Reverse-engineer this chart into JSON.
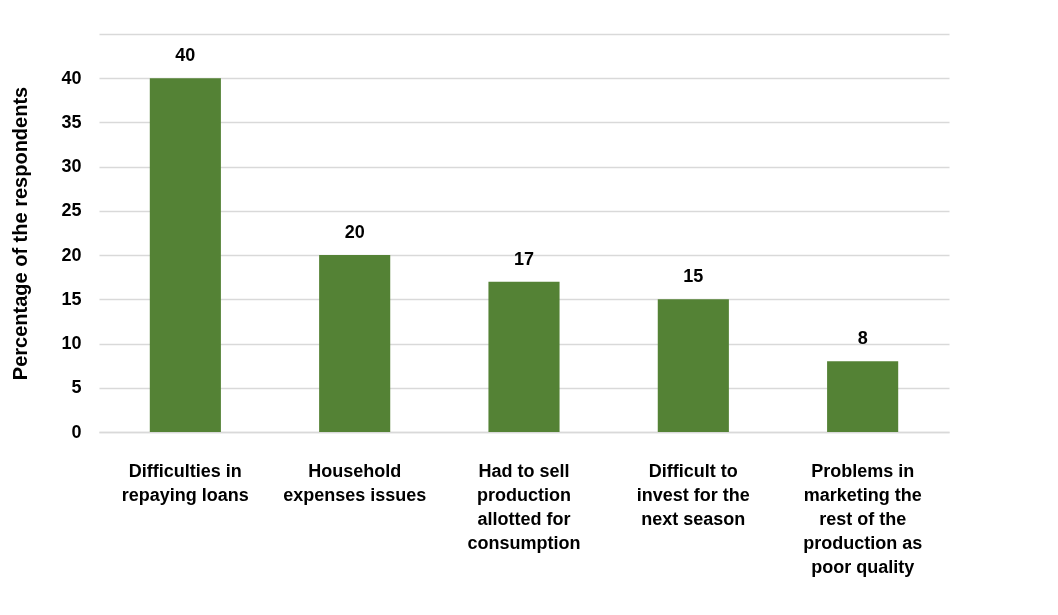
{
  "chart_data": {
    "type": "bar",
    "ylabel": "Percentage of the respondents",
    "categories": [
      "Difficulties in repaying loans",
      "Household expenses issues",
      "Had to sell production allotted for consumption",
      "Difficult to invest for the next season",
      "Problems in marketing the rest of the production as poor quality"
    ],
    "values": [
      40,
      20,
      17,
      15,
      8
    ],
    "color": "#548235",
    "ylim": [
      0,
      45
    ],
    "yticks": [
      0,
      5,
      10,
      15,
      20,
      25,
      30,
      35,
      40,
      {
        "value": 45,
        "label": null
      }
    ],
    "grid": "y",
    "data_labels": true
  }
}
